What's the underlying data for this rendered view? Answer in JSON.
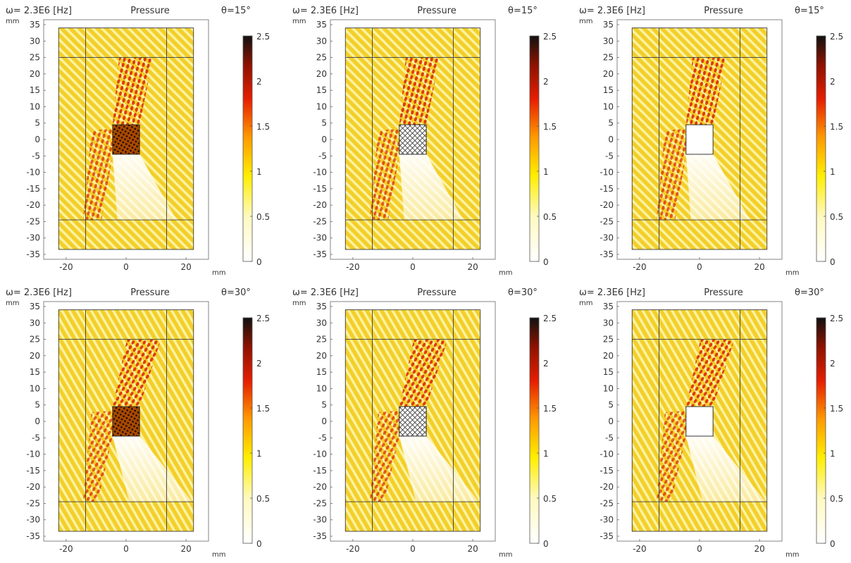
{
  "chart_data": [
    {
      "type": "heatmap",
      "header": {
        "frequency": "ω= 2.3E6 [Hz]",
        "quantity": "Pressure",
        "angle": "θ=15°"
      },
      "x_unit": "mm",
      "y_unit": "mm",
      "xlim": [
        -27.5,
        27.5
      ],
      "ylim": [
        -36.5,
        36.5
      ],
      "x_ticks": [
        -20,
        0,
        20
      ],
      "y_ticks": [
        35,
        30,
        25,
        20,
        15,
        10,
        5,
        0,
        -5,
        -10,
        -15,
        -20,
        -25,
        -30,
        -35
      ],
      "domain": {
        "x": [
          -22.5,
          22.5
        ],
        "y": [
          -33.5,
          34
        ]
      },
      "inner_lines": {
        "x": [
          -13.5,
          13.5
        ],
        "y": [
          25,
          -24.5
        ]
      },
      "obstacle": {
        "x": [
          -4.5,
          4.5
        ],
        "y": [
          -4.5,
          4.5
        ],
        "fill": "mesh-dense"
      },
      "colorbar": {
        "min": 0,
        "max": 2.5,
        "ticks": [
          "2.5",
          "2",
          "1.5",
          "1",
          "0.5",
          "0"
        ]
      }
    },
    {
      "type": "heatmap",
      "header": {
        "frequency": "ω= 2.3E6 [Hz]",
        "quantity": "Pressure",
        "angle": "θ=15°"
      },
      "x_unit": "mm",
      "y_unit": "mm",
      "xlim": [
        -27.5,
        27.5
      ],
      "ylim": [
        -36.5,
        36.5
      ],
      "x_ticks": [
        -20,
        0,
        20
      ],
      "y_ticks": [
        35,
        30,
        25,
        20,
        15,
        10,
        5,
        0,
        -5,
        -10,
        -15,
        -20,
        -25,
        -30,
        -35
      ],
      "domain": {
        "x": [
          -22.5,
          22.5
        ],
        "y": [
          -33.5,
          34
        ]
      },
      "inner_lines": {
        "x": [
          -13.5,
          13.5
        ],
        "y": [
          25,
          -24.5
        ]
      },
      "obstacle": {
        "x": [
          -4.5,
          4.5
        ],
        "y": [
          -4.5,
          4.5
        ],
        "fill": "lattice"
      },
      "colorbar": {
        "min": 0,
        "max": 2.5,
        "ticks": [
          "2.5",
          "2",
          "1.5",
          "1",
          "0.5",
          "0"
        ]
      }
    },
    {
      "type": "heatmap",
      "header": {
        "frequency": "ω= 2.3E6 [Hz]",
        "quantity": "Pressure",
        "angle": "θ=15°"
      },
      "x_unit": "mm",
      "y_unit": "mm",
      "xlim": [
        -27.5,
        27.5
      ],
      "ylim": [
        -36.5,
        36.5
      ],
      "x_ticks": [
        -20,
        0,
        20
      ],
      "y_ticks": [
        35,
        30,
        25,
        20,
        15,
        10,
        5,
        0,
        -5,
        -10,
        -15,
        -20,
        -25,
        -30,
        -35
      ],
      "domain": {
        "x": [
          -22.5,
          22.5
        ],
        "y": [
          -33.5,
          34
        ]
      },
      "inner_lines": {
        "x": [
          -13.5,
          13.5
        ],
        "y": [
          25,
          -24.5
        ]
      },
      "obstacle": {
        "x": [
          -4.5,
          4.5
        ],
        "y": [
          -4.5,
          4.5
        ],
        "fill": "empty"
      },
      "colorbar": {
        "min": 0,
        "max": 2.5,
        "ticks": [
          "2.5",
          "2",
          "1.5",
          "1",
          "0.5",
          "0"
        ]
      }
    },
    {
      "type": "heatmap",
      "header": {
        "frequency": "ω= 2.3E6 [Hz]",
        "quantity": "Pressure",
        "angle": "θ=30°"
      },
      "x_unit": "mm",
      "y_unit": "mm",
      "xlim": [
        -27.5,
        27.5
      ],
      "ylim": [
        -36.5,
        36.5
      ],
      "x_ticks": [
        -20,
        0,
        20
      ],
      "y_ticks": [
        35,
        30,
        25,
        20,
        15,
        10,
        5,
        0,
        -5,
        -10,
        -15,
        -20,
        -25,
        -30,
        -35
      ],
      "domain": {
        "x": [
          -22.5,
          22.5
        ],
        "y": [
          -33.5,
          34
        ]
      },
      "inner_lines": {
        "x": [
          -13.5,
          13.5
        ],
        "y": [
          25,
          -24.5
        ]
      },
      "obstacle": {
        "x": [
          -4.5,
          4.5
        ],
        "y": [
          -4.5,
          4.5
        ],
        "fill": "mesh-dense"
      },
      "colorbar": {
        "min": 0,
        "max": 2.5,
        "ticks": [
          "2.5",
          "2",
          "1.5",
          "1",
          "0.5",
          "0"
        ]
      }
    },
    {
      "type": "heatmap",
      "header": {
        "frequency": "ω= 2.3E6 [Hz]",
        "quantity": "Pressure",
        "angle": "θ=30°"
      },
      "x_unit": "mm",
      "y_unit": "mm",
      "xlim": [
        -27.5,
        27.5
      ],
      "ylim": [
        -36.5,
        36.5
      ],
      "x_ticks": [
        -20,
        0,
        20
      ],
      "y_ticks": [
        35,
        30,
        25,
        20,
        15,
        10,
        5,
        0,
        -5,
        -10,
        -15,
        -20,
        -25,
        -30,
        -35
      ],
      "domain": {
        "x": [
          -22.5,
          22.5
        ],
        "y": [
          -33.5,
          34
        ]
      },
      "inner_lines": {
        "x": [
          -13.5,
          13.5
        ],
        "y": [
          25,
          -24.5
        ]
      },
      "obstacle": {
        "x": [
          -4.5,
          4.5
        ],
        "y": [
          -4.5,
          4.5
        ],
        "fill": "lattice"
      },
      "colorbar": {
        "min": 0,
        "max": 2.5,
        "ticks": [
          "2.5",
          "2",
          "1.5",
          "1",
          "0.5",
          "0"
        ]
      }
    },
    {
      "type": "heatmap",
      "header": {
        "frequency": "ω= 2.3E6 [Hz]",
        "quantity": "Pressure",
        "angle": "θ=30°"
      },
      "x_unit": "mm",
      "y_unit": "mm",
      "xlim": [
        -27.5,
        27.5
      ],
      "ylim": [
        -36.5,
        36.5
      ],
      "x_ticks": [
        -20,
        0,
        20
      ],
      "y_ticks": [
        35,
        30,
        25,
        20,
        15,
        10,
        5,
        0,
        -5,
        -10,
        -15,
        -20,
        -25,
        -30,
        -35
      ],
      "domain": {
        "x": [
          -22.5,
          22.5
        ],
        "y": [
          -33.5,
          34
        ]
      },
      "inner_lines": {
        "x": [
          -13.5,
          13.5
        ],
        "y": [
          25,
          -24.5
        ]
      },
      "obstacle": {
        "x": [
          -4.5,
          4.5
        ],
        "y": [
          -4.5,
          4.5
        ],
        "fill": "empty"
      },
      "colorbar": {
        "min": 0,
        "max": 2.5,
        "ticks": [
          "2.5",
          "2",
          "1.5",
          "1",
          "0.5",
          "0"
        ]
      }
    }
  ],
  "colors": {
    "background_field": "#f3cf2a",
    "stripe_light": "#fdf2a0",
    "hot_red": "#d81e00",
    "hot_dark": "#5a0d00",
    "shadow_white": "#ffffff",
    "line": "#3a3a3a"
  }
}
